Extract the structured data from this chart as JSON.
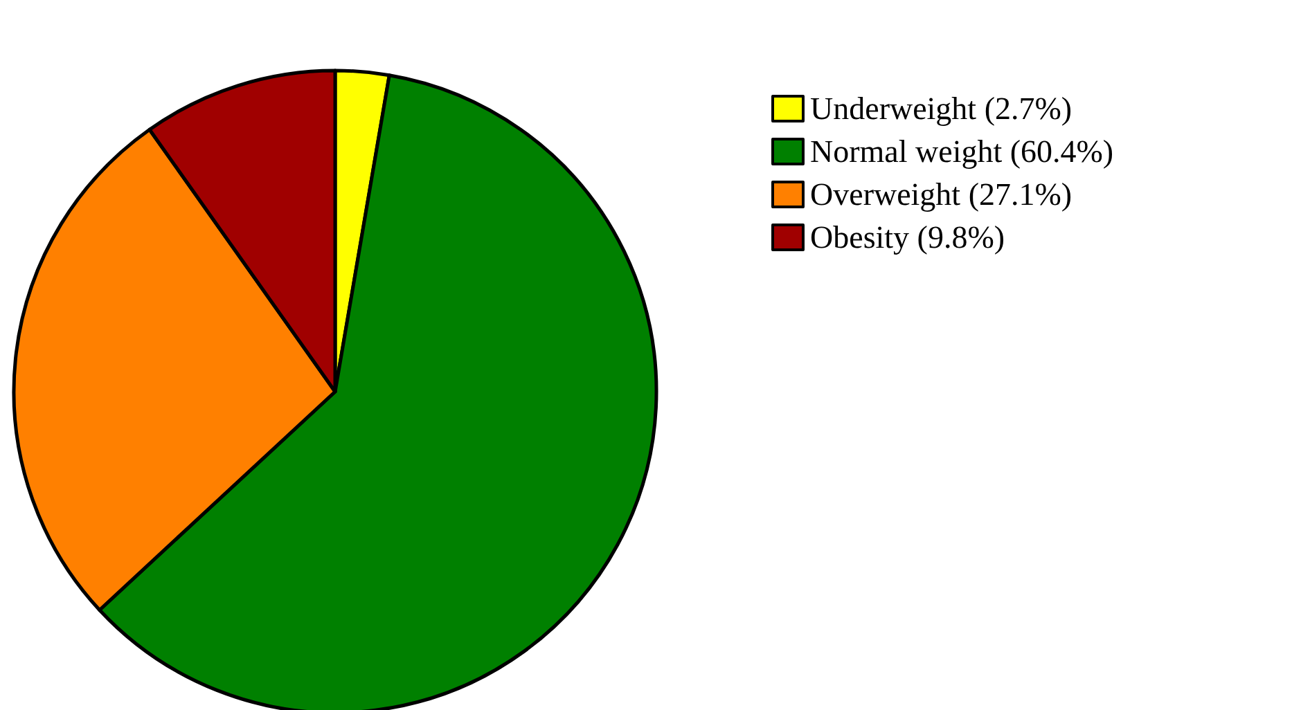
{
  "chart_data": {
    "type": "pie",
    "categories": [
      "Underweight (2.7%)",
      "Normal weight (60.4%)",
      "Overweight (27.1%)",
      "Obesity (9.8%)"
    ],
    "values": [
      2.7,
      60.4,
      27.1,
      9.8
    ],
    "colors": [
      "#ffff00",
      "#008000",
      "#ff8000",
      "#a00000"
    ],
    "legend": "top right"
  }
}
